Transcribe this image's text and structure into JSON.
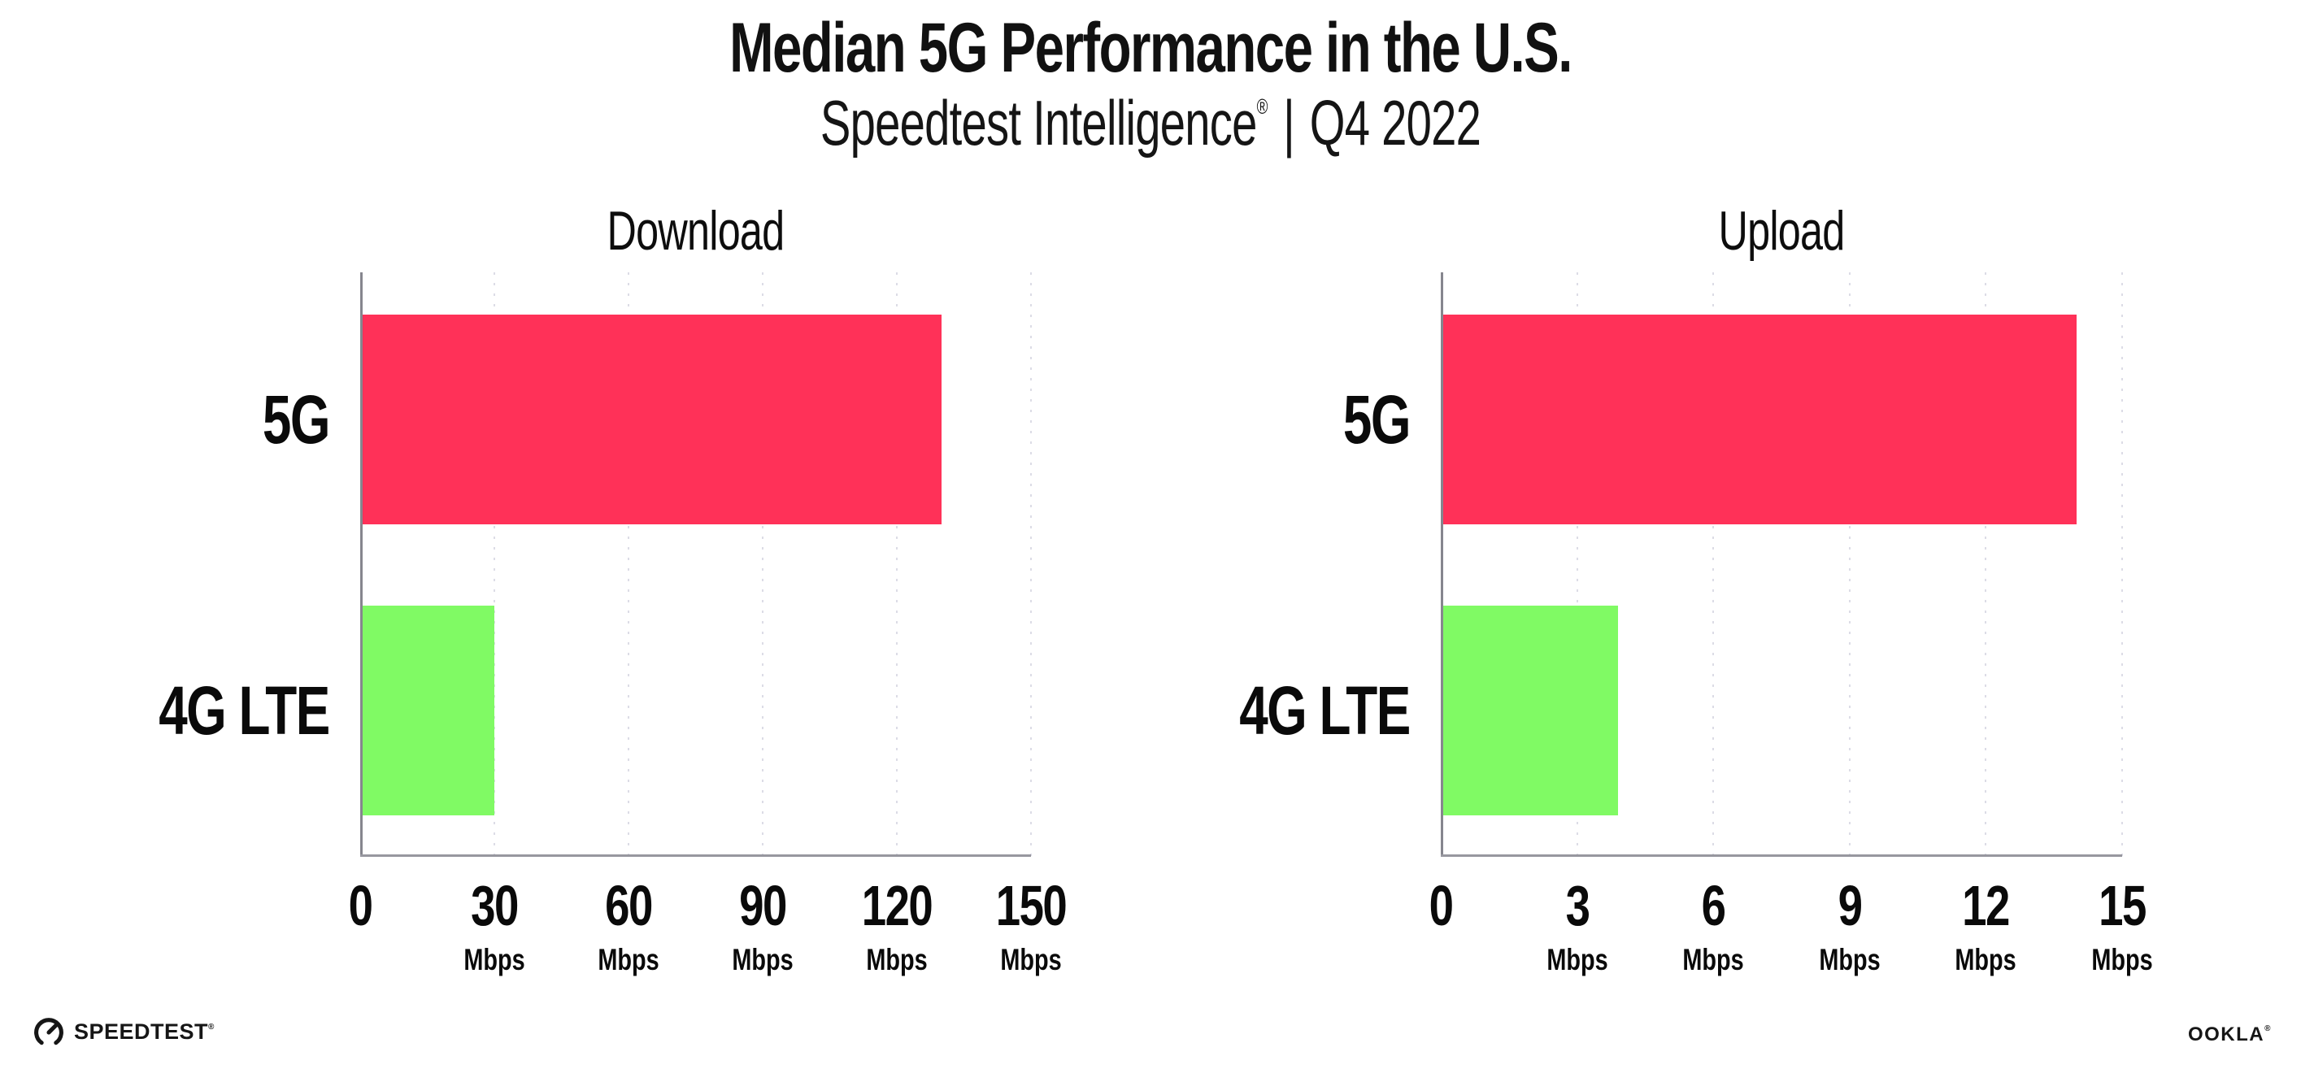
{
  "header": {
    "title": "Median 5G Performance in the U.S.",
    "subtitle_brand": "Speedtest Intelligence",
    "subtitle_reg": "®",
    "subtitle_divider": "|",
    "subtitle_period": "Q4 2022"
  },
  "chart_data": [
    {
      "type": "bar",
      "orientation": "horizontal",
      "title": "Download",
      "categories": [
        "5G",
        "4G LTE"
      ],
      "values": [
        130,
        30
      ],
      "unit": "Mbps",
      "xlim": [
        0,
        150
      ],
      "xticks": [
        0,
        30,
        60,
        90,
        120,
        150
      ],
      "tick_unit_label": "Mbps",
      "grid": "vertical-dotted",
      "legend": "none",
      "bar_colors": [
        "#ff3158",
        "#80fa64"
      ]
    },
    {
      "type": "bar",
      "orientation": "horizontal",
      "title": "Upload",
      "categories": [
        "5G",
        "4G LTE"
      ],
      "values": [
        14,
        3.9
      ],
      "unit": "Mbps",
      "xlim": [
        0,
        15
      ],
      "xticks": [
        0,
        3,
        6,
        9,
        12,
        15
      ],
      "tick_unit_label": "Mbps",
      "grid": "vertical-dotted",
      "legend": "none",
      "bar_colors": [
        "#ff3158",
        "#80fa64"
      ]
    }
  ],
  "footer": {
    "speedtest_label": "SPEEDTEST",
    "speedtest_mark": "®",
    "ookla_label": "OOKLA",
    "ookla_mark": "®"
  },
  "colors": {
    "bar_5g": "#ff3158",
    "bar_4g_lte": "#80fa64",
    "gridline": "#dcdce6",
    "axis_x": "#97979f",
    "axis_y": "#86868e",
    "text": "#111111"
  }
}
